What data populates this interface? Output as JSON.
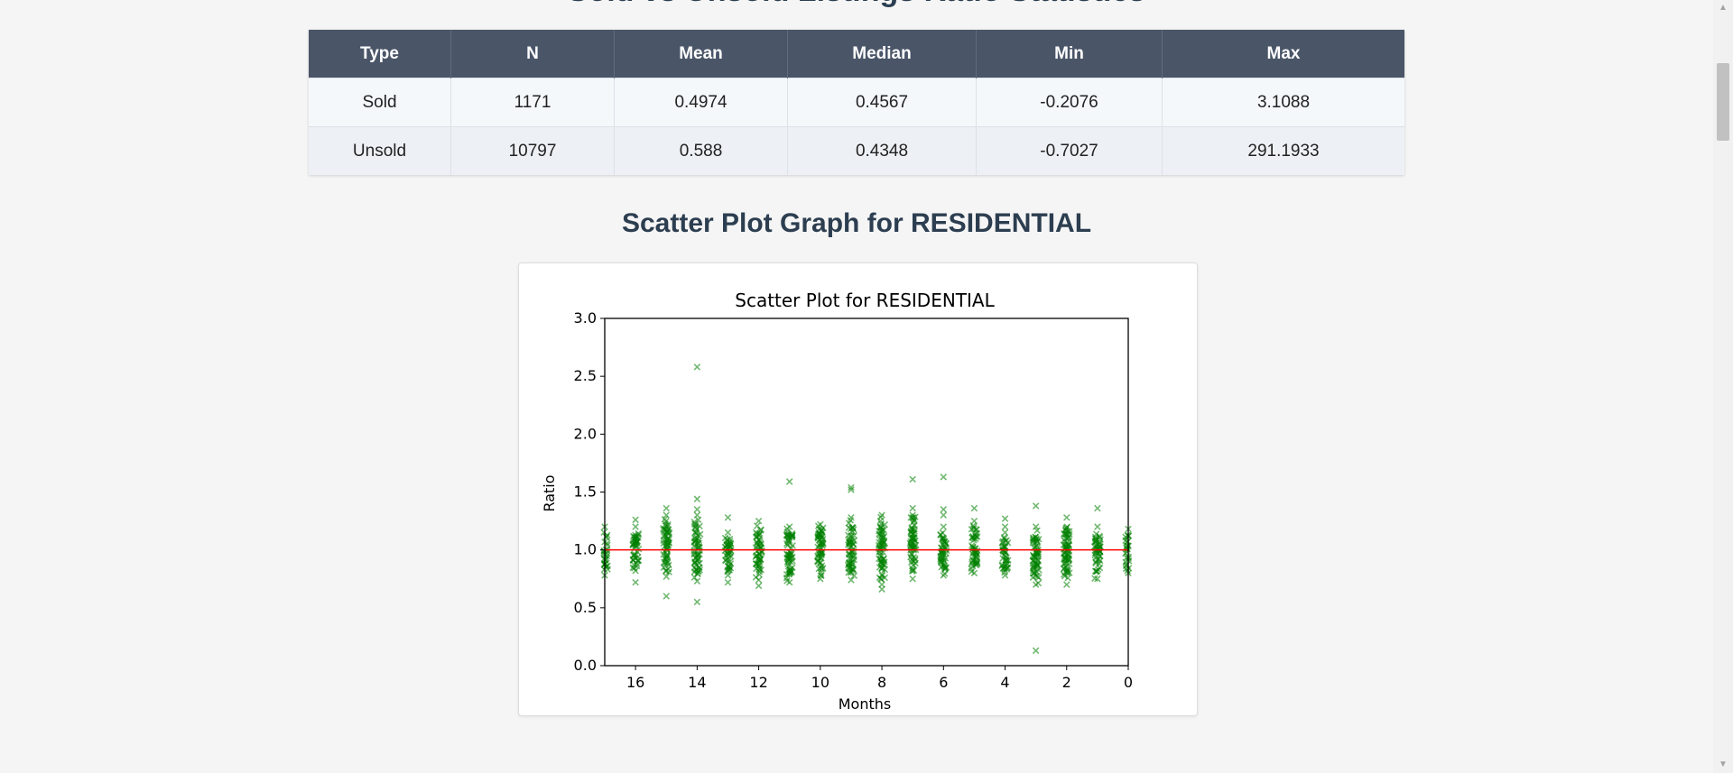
{
  "page": {
    "heading": "Sold vs Unsold Listings Ratio Statistics",
    "section_title": "Scatter Plot Graph for RESIDENTIAL"
  },
  "stats_table": {
    "headers": [
      "Type",
      "N",
      "Mean",
      "Median",
      "Min",
      "Max"
    ],
    "rows": [
      [
        "Sold",
        "1171",
        "0.4974",
        "0.4567",
        "-0.2076",
        "3.1088"
      ],
      [
        "Unsold",
        "10797",
        "0.588",
        "0.4348",
        "-0.7027",
        "291.1933"
      ]
    ]
  },
  "colors": {
    "header_bg": "#4a5568",
    "points": "#008000",
    "reference_line": "#ff0000"
  },
  "chart_data": {
    "type": "scatter",
    "title": "Scatter Plot for RESIDENTIAL",
    "xlabel": "Months",
    "ylabel": "Ratio",
    "xlim": [
      17,
      0
    ],
    "ylim": [
      0.0,
      3.0
    ],
    "x_inverted": true,
    "xticks": [
      16,
      14,
      12,
      10,
      8,
      6,
      4,
      2,
      0
    ],
    "yticks": [
      0.0,
      0.5,
      1.0,
      1.5,
      2.0,
      2.5,
      3.0
    ],
    "ytick_labels": [
      "0.0",
      "0.5",
      "1.0",
      "1.5",
      "2.0",
      "2.5",
      "3.0"
    ],
    "marker": "x",
    "reference_line_y": 1.0,
    "grid": false,
    "columns": [
      {
        "x": 17,
        "min": 0.78,
        "max": 1.2,
        "count": 40,
        "outliers": []
      },
      {
        "x": 16,
        "min": 0.82,
        "max": 1.2,
        "count": 45,
        "outliers": [
          0.72,
          1.26
        ]
      },
      {
        "x": 15,
        "min": 0.77,
        "max": 1.3,
        "count": 60,
        "outliers": [
          0.6,
          1.36
        ]
      },
      {
        "x": 14,
        "min": 0.73,
        "max": 1.3,
        "count": 60,
        "outliers": [
          0.55,
          1.35,
          1.44,
          2.58
        ]
      },
      {
        "x": 13,
        "min": 0.78,
        "max": 1.15,
        "count": 45,
        "outliers": [
          0.72,
          1.28
        ]
      },
      {
        "x": 12,
        "min": 0.74,
        "max": 1.25,
        "count": 55,
        "outliers": [
          0.69
        ]
      },
      {
        "x": 11,
        "min": 0.72,
        "max": 1.2,
        "count": 60,
        "outliers": [
          1.59
        ]
      },
      {
        "x": 10,
        "min": 0.75,
        "max": 1.22,
        "count": 60,
        "outliers": []
      },
      {
        "x": 9,
        "min": 0.74,
        "max": 1.28,
        "count": 60,
        "outliers": [
          1.52,
          1.54
        ]
      },
      {
        "x": 8,
        "min": 0.7,
        "max": 1.3,
        "count": 65,
        "outliers": [
          0.66
        ]
      },
      {
        "x": 7,
        "min": 0.75,
        "max": 1.3,
        "count": 60,
        "outliers": [
          1.36,
          1.61
        ]
      },
      {
        "x": 6,
        "min": 0.78,
        "max": 1.2,
        "count": 50,
        "outliers": [
          1.3,
          1.35,
          1.63
        ]
      },
      {
        "x": 5,
        "min": 0.8,
        "max": 1.25,
        "count": 50,
        "outliers": [
          1.36
        ]
      },
      {
        "x": 4,
        "min": 0.78,
        "max": 1.15,
        "count": 40,
        "outliers": [
          1.2,
          1.27
        ]
      },
      {
        "x": 3,
        "min": 0.7,
        "max": 1.2,
        "count": 60,
        "outliers": [
          0.13,
          1.38
        ]
      },
      {
        "x": 2,
        "min": 0.7,
        "max": 1.28,
        "count": 70,
        "outliers": []
      },
      {
        "x": 1,
        "min": 0.75,
        "max": 1.2,
        "count": 50,
        "outliers": [
          1.36
        ]
      },
      {
        "x": 0,
        "min": 0.8,
        "max": 1.18,
        "count": 35,
        "outliers": []
      }
    ]
  }
}
